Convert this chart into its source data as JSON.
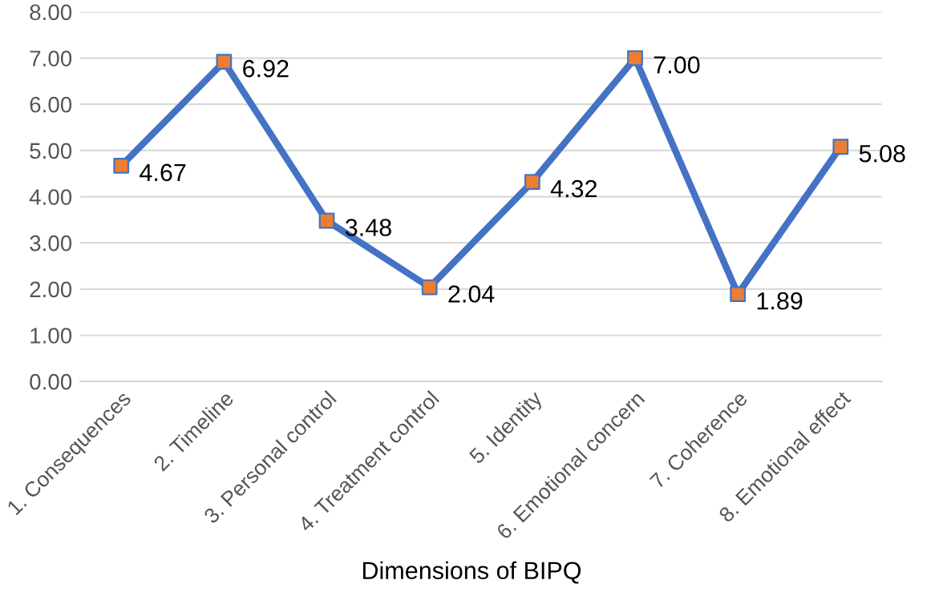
{
  "chart_data": {
    "type": "line",
    "xlabel": "Dimensions of BIPQ",
    "categories": [
      "1. Consequences",
      "2. Timeline",
      "3. Personal control",
      "4. Treatment control",
      "5. Identity",
      "6. Emotional concern",
      "7. Coherence",
      "8. Emotional effect"
    ],
    "series": [
      {
        "color": "#4472c4",
        "colors": [
          "#ed7d31",
          "#ed7d31",
          "#ed7d31",
          "#ed7d31",
          "#ed7d31",
          "#ed7d31",
          "#ed7d31",
          "#ed7d31"
        ],
        "values": [
          4.67,
          6.92,
          3.48,
          2.04,
          4.32,
          7.0,
          1.89,
          5.08
        ],
        "value_labels": [
          "4.67",
          "6.92",
          "3.48",
          "2.04",
          "4.32",
          "7.00",
          "1.89",
          "5.08"
        ]
      }
    ],
    "ylim": [
      0,
      8
    ],
    "yticks": [
      {
        "value": 0,
        "label": "0.00"
      },
      {
        "value": 1,
        "label": "1.00"
      },
      {
        "value": 2,
        "label": "2.00"
      },
      {
        "value": 3,
        "label": "3.00"
      },
      {
        "value": 4,
        "label": "4.00"
      },
      {
        "value": 5,
        "label": "5.00"
      },
      {
        "value": 6,
        "label": "6.00"
      },
      {
        "value": 7,
        "label": "7.00"
      },
      {
        "value": 8,
        "label": "8.00"
      }
    ],
    "grid": "y",
    "marker": "square",
    "line_style": "solid"
  }
}
